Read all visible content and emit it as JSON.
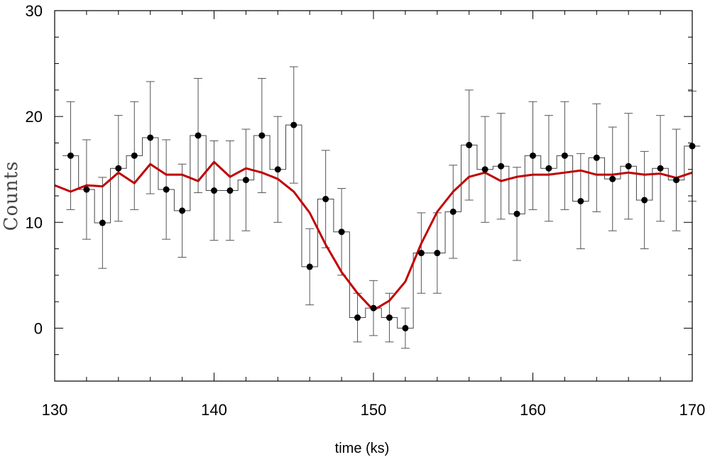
{
  "chart_data": {
    "type": "line",
    "title": "",
    "xlabel": "time (ks)",
    "ylabel": "Counts",
    "xlim": [
      130,
      170
    ],
    "ylim": [
      -5,
      30
    ],
    "xticks": [
      "130",
      "140",
      "150",
      "160",
      "170"
    ],
    "yticks": [
      "0",
      "10",
      "20",
      "30"
    ],
    "grid": false,
    "colors": {
      "data": "#000000",
      "model": "#c00000",
      "errorbar": "#555555"
    },
    "series": [
      {
        "style": "points-with-errorbars-and-step-histogram",
        "bin_width": 1,
        "x": [
          131,
          132,
          133,
          134,
          135,
          136,
          137,
          138,
          139,
          140,
          141,
          142,
          143,
          144,
          145,
          146,
          147,
          148,
          149,
          150,
          151,
          152,
          153,
          154,
          155,
          156,
          157,
          158,
          159,
          160,
          161,
          162,
          163,
          164,
          165,
          166,
          167,
          168,
          169,
          170
        ],
        "y": [
          16.3,
          13.1,
          9.95,
          15.1,
          16.3,
          18.0,
          13.1,
          11.1,
          18.2,
          13.0,
          13.0,
          14.0,
          18.2,
          15.0,
          19.2,
          5.8,
          12.2,
          9.1,
          1.0,
          1.9,
          1.0,
          0,
          7.1,
          7.1,
          11.0,
          17.3,
          15.0,
          15.3,
          10.8,
          16.3,
          15.1,
          16.3,
          12.0,
          16.1,
          14.1,
          15.3,
          12.1,
          15.1,
          14.0,
          17.2
        ],
        "yerr": [
          5.1,
          4.7,
          4.3,
          5.0,
          5.1,
          5.3,
          4.7,
          4.4,
          5.4,
          4.7,
          4.7,
          4.8,
          5.4,
          5.0,
          5.5,
          3.6,
          4.6,
          4.1,
          2.3,
          2.6,
          2.3,
          1.9,
          3.8,
          3.8,
          4.4,
          5.2,
          5.0,
          5.0,
          4.4,
          5.1,
          5.0,
          5.1,
          4.5,
          5.1,
          4.9,
          5.0,
          4.6,
          5.0,
          4.8,
          5.2
        ]
      },
      {
        "style": "line",
        "x": [
          130,
          131,
          132,
          133,
          134,
          135,
          136,
          137,
          138,
          139,
          140,
          141,
          142,
          143,
          144,
          145,
          146,
          147,
          148,
          149,
          150,
          151,
          152,
          153,
          154,
          155,
          156,
          157,
          158,
          159,
          160,
          161,
          162,
          163,
          164,
          165,
          166,
          167,
          168,
          169,
          170
        ],
        "y": [
          13.5,
          12.9,
          13.5,
          13.4,
          14.7,
          13.7,
          15.5,
          14.5,
          14.5,
          13.9,
          15.7,
          14.3,
          15.1,
          14.7,
          14.1,
          12.9,
          10.9,
          7.9,
          5.3,
          3.3,
          1.7,
          2.6,
          4.4,
          8.0,
          11.0,
          12.9,
          14.3,
          14.7,
          13.9,
          14.3,
          14.5,
          14.5,
          14.7,
          14.9,
          14.5,
          14.5,
          14.7,
          14.5,
          14.6,
          14.2,
          14.7
        ]
      }
    ]
  }
}
